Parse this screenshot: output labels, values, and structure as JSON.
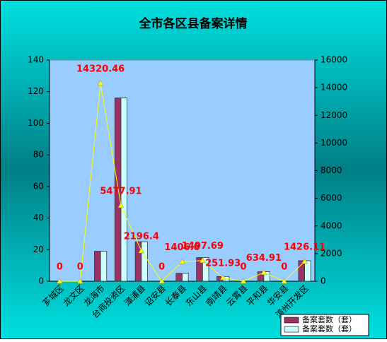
{
  "chart_data": {
    "type": "bar",
    "title": "全市各区县备案详情",
    "categories": [
      "芗城区",
      "龙文区",
      "龙海市",
      "台商投资区",
      "漳浦县",
      "诏安县",
      "长泰县",
      "东山县",
      "南靖县",
      "云霄县",
      "平和县",
      "华安县",
      "漳州开发区"
    ],
    "series": [
      {
        "name": "备案套数（套）",
        "color": "#993366",
        "values": [
          0,
          0,
          19,
          116,
          25,
          0,
          5,
          15,
          3,
          0,
          6,
          0,
          13
        ]
      },
      {
        "name": "备案套数（套）",
        "color": "#ccffff",
        "values": [
          0,
          0,
          19,
          116,
          25,
          0,
          5,
          15,
          3,
          0,
          6,
          0,
          13
        ]
      },
      {
        "type": "line",
        "axis": "y2",
        "color": "#ffff00",
        "values": [
          0,
          0,
          14320.46,
          5477.91,
          2196.4,
          0,
          1406.6,
          1497.69,
          251.93,
          0,
          634.91,
          0,
          1426.11
        ]
      }
    ],
    "ylim": [
      0,
      140
    ],
    "yticks": [
      0,
      20,
      40,
      60,
      80,
      100,
      120,
      140
    ],
    "y2lim": [
      0,
      16000
    ],
    "y2ticks": [
      0,
      2000,
      4000,
      6000,
      8000,
      10000,
      12000,
      14000,
      16000
    ],
    "legend": "bottom-right"
  }
}
